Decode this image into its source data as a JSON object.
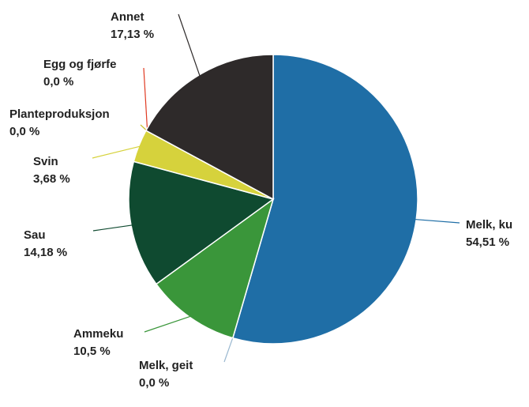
{
  "chart_data": {
    "type": "pie",
    "categories": [
      "Melk, ku",
      "Melk, geit",
      "Ammeku",
      "Sau",
      "Svin",
      "Planteproduksjon",
      "Egg og fjørfe",
      "Annet"
    ],
    "values": [
      54.51,
      0.0,
      10.5,
      14.18,
      3.68,
      0.0,
      0.0,
      17.13
    ],
    "value_labels": [
      "54,51 %",
      "0,0 %",
      "10,5 %",
      "14,18 %",
      "3,68 %",
      "0,0 %",
      "0,0 %",
      "17,13 %"
    ],
    "colors": [
      "#1f6ea6",
      "#9ab8d0",
      "#3a963a",
      "#0f4a30",
      "#d6d23c",
      "#c9bf2a",
      "#e03a22",
      "#2e2a2a"
    ]
  }
}
